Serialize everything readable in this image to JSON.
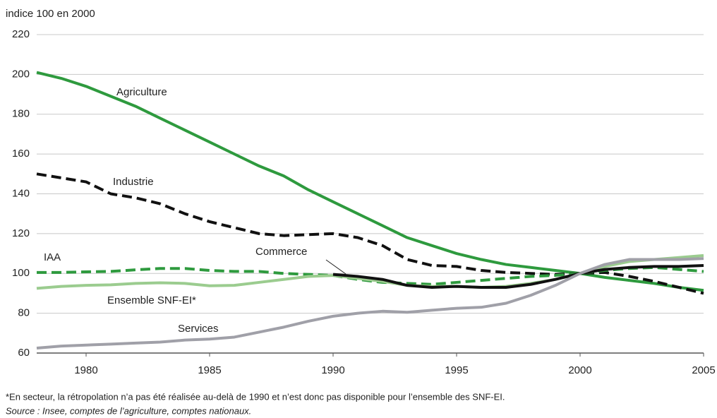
{
  "chart_data": {
    "type": "line",
    "y_axis_label": "indice 100 en 2000",
    "x": [
      1978,
      1979,
      1980,
      1981,
      1982,
      1983,
      1984,
      1985,
      1986,
      1987,
      1988,
      1989,
      1990,
      1991,
      1992,
      1993,
      1994,
      1995,
      1996,
      1997,
      1998,
      1999,
      2000,
      2001,
      2002,
      2003,
      2004,
      2005
    ],
    "xlim": [
      1978,
      2005
    ],
    "xticks": [
      1980,
      1985,
      1990,
      1995,
      2000,
      2005
    ],
    "ylim": [
      60,
      220
    ],
    "yticks": [
      60,
      80,
      100,
      120,
      140,
      160,
      180,
      200,
      220
    ],
    "grid": true,
    "series": [
      {
        "name": "Agriculture",
        "color": "#2e9a3e",
        "style": "solid",
        "values": [
          201,
          198,
          194,
          189,
          184,
          178,
          172,
          166,
          160,
          154,
          149,
          142,
          136,
          130,
          124,
          118,
          114,
          110,
          107,
          104.5,
          103,
          101.5,
          100,
          98,
          96.5,
          95,
          93,
          91.5
        ]
      },
      {
        "name": "Industrie",
        "color": "#111111",
        "style": "dashed",
        "values": [
          150,
          148,
          146,
          140,
          138,
          135,
          130,
          126,
          123,
          120,
          119,
          119.5,
          120,
          118,
          114,
          107,
          104,
          103.5,
          101.5,
          100.5,
          100,
          99.5,
          100,
          100.5,
          98.5,
          96,
          93,
          90
        ]
      },
      {
        "name": "IAA",
        "color": "#2e9a3e",
        "style": "dashed",
        "values": [
          100.5,
          100.5,
          100.8,
          101,
          101.8,
          102.5,
          102.5,
          101.5,
          101,
          101,
          100,
          99.5,
          99,
          97,
          95.5,
          95,
          94.5,
          95.5,
          96.5,
          97.5,
          98.5,
          99,
          100,
          101.5,
          102.5,
          103,
          102,
          101
        ]
      },
      {
        "name": "Commerce",
        "color": "#9bcc8f",
        "style": "solid",
        "values": [
          92.5,
          93.5,
          94,
          94.3,
          95,
          95.3,
          95,
          93.8,
          94,
          95.5,
          97,
          98.5,
          99,
          97.5,
          96,
          94,
          93.5,
          93.5,
          93,
          93.5,
          95,
          97,
          100,
          103.5,
          106,
          107,
          108,
          109
        ]
      },
      {
        "name": "Ensemble SNF-EI*",
        "color": "#111111",
        "style": "solid",
        "values": [
          null,
          null,
          null,
          null,
          null,
          null,
          null,
          null,
          null,
          null,
          null,
          null,
          99.5,
          98.5,
          97,
          94,
          93,
          93.5,
          93,
          93,
          94.5,
          97,
          100,
          102,
          103,
          103.5,
          103.5,
          104
        ]
      },
      {
        "name": "Services",
        "color": "#a0a0a8",
        "style": "solid",
        "values": [
          62.5,
          63.5,
          64,
          64.5,
          65,
          65.5,
          66.5,
          67,
          68,
          70.5,
          73,
          76,
          78.5,
          80,
          81,
          80.5,
          81.5,
          82.5,
          83,
          85,
          89,
          94,
          100,
          104.5,
          107,
          107,
          107,
          107.5
        ]
      }
    ],
    "footnote": "*En secteur, la rétropolation n’a pas été réalisée au-delà de 1990 et n’est donc pas disponible pour l’ensemble des SNF-EI.",
    "source": "Source : Insee, comptes de l’agriculture, comptes nationaux."
  }
}
